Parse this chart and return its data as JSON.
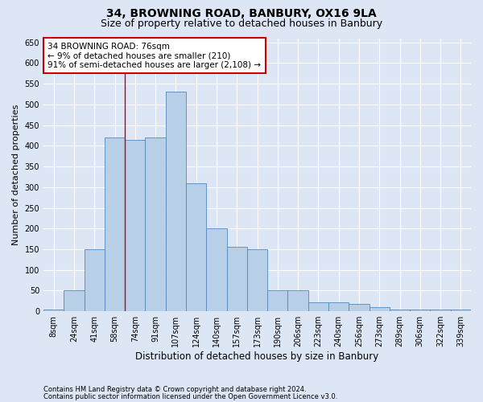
{
  "title1": "34, BROWNING ROAD, BANBURY, OX16 9LA",
  "title2": "Size of property relative to detached houses in Banbury",
  "xlabel": "Distribution of detached houses by size in Banbury",
  "ylabel": "Number of detached properties",
  "categories": [
    "8sqm",
    "24sqm",
    "41sqm",
    "58sqm",
    "74sqm",
    "91sqm",
    "107sqm",
    "124sqm",
    "140sqm",
    "157sqm",
    "173sqm",
    "190sqm",
    "206sqm",
    "223sqm",
    "240sqm",
    "256sqm",
    "273sqm",
    "289sqm",
    "306sqm",
    "322sqm",
    "339sqm"
  ],
  "values": [
    5,
    50,
    150,
    420,
    415,
    420,
    530,
    310,
    200,
    155,
    150,
    50,
    50,
    22,
    22,
    18,
    10,
    5,
    5,
    5,
    5
  ],
  "bar_color": "#b8cfe8",
  "bar_edge_color": "#5588bb",
  "red_line_x": 3.5,
  "annotation_text": "34 BROWNING ROAD: 76sqm\n← 9% of detached houses are smaller (210)\n91% of semi-detached houses are larger (2,108) →",
  "annotation_box_color": "#ffffff",
  "annotation_box_edge": "#cc0000",
  "ylim": [
    0,
    660
  ],
  "yticks": [
    0,
    50,
    100,
    150,
    200,
    250,
    300,
    350,
    400,
    450,
    500,
    550,
    600,
    650
  ],
  "background_color": "#dce6f5",
  "plot_background": "#dce6f5",
  "footnote1": "Contains HM Land Registry data © Crown copyright and database right 2024.",
  "footnote2": "Contains public sector information licensed under the Open Government Licence v3.0.",
  "title1_fontsize": 10,
  "title2_fontsize": 9,
  "xlabel_fontsize": 8.5,
  "ylabel_fontsize": 8,
  "tick_fontsize": 7,
  "annotation_fontsize": 7.5,
  "footnote_fontsize": 6
}
